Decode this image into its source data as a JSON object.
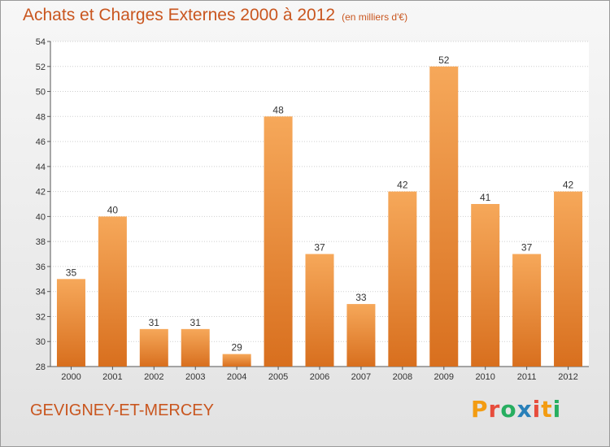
{
  "header": {
    "title": "Achats et Charges Externes 2000 à 2012",
    "unit": "(en milliers d'€)"
  },
  "footer": {
    "commune": "GEVIGNEY-ET-MERCEY",
    "logo_letters": [
      "P",
      "r",
      "o",
      "x",
      "i",
      "t",
      "i"
    ],
    "logo_colors": [
      "#f39c12",
      "#e74c3c",
      "#27ae60",
      "#2980b9",
      "#e74c3c",
      "#f39c12",
      "#27ae60"
    ]
  },
  "colors": {
    "title": "#c9561f",
    "bar_light": "#f6a85a",
    "bar_dark": "#d86f1e"
  },
  "chart_data": {
    "type": "bar",
    "title": "Achats et Charges Externes 2000 à 2012",
    "subtitle": "(en milliers d'€)",
    "categories": [
      "2000",
      "2001",
      "2002",
      "2003",
      "2004",
      "2005",
      "2006",
      "2007",
      "2008",
      "2009",
      "2010",
      "2011",
      "2012"
    ],
    "values": [
      35,
      40,
      31,
      31,
      29,
      48,
      37,
      33,
      42,
      52,
      41,
      37,
      42
    ],
    "ylim": [
      28,
      54
    ],
    "yticks": [
      28,
      30,
      32,
      34,
      36,
      38,
      40,
      42,
      44,
      46,
      48,
      50,
      52,
      54
    ],
    "grid": true
  }
}
